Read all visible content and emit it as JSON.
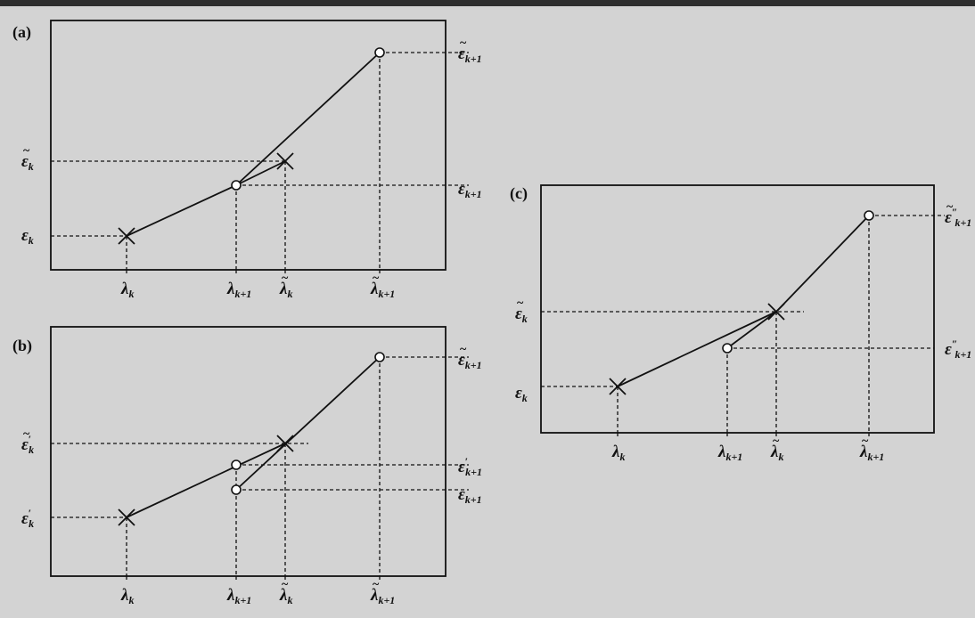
{
  "colors": {
    "background": "#d3d3d3",
    "ink": "#111111",
    "topbar": "#2e2e2e"
  },
  "panels": [
    {
      "id": "a",
      "label": "(a)",
      "y_labels": [
        {
          "base": "ε",
          "tilde": "~",
          "sub": "k",
          "sup": ""
        },
        {
          "base": "ε",
          "tilde": "",
          "sub": "k",
          "sup": ""
        },
        {
          "base": "ε",
          "tilde": "~",
          "sub": "k+1",
          "sup": ""
        },
        {
          "base": "ε",
          "tilde": "",
          "sub": "k+1",
          "sup": ""
        }
      ],
      "x_labels": [
        {
          "base": "λ",
          "tilde": "",
          "sub": "k"
        },
        {
          "base": "λ",
          "tilde": "",
          "sub": "k+1"
        },
        {
          "base": "λ",
          "tilde": "~",
          "sub": "k"
        },
        {
          "base": "λ",
          "tilde": "~",
          "sub": "k+1"
        }
      ]
    },
    {
      "id": "b",
      "label": "(b)",
      "y_labels": [
        {
          "base": "ε",
          "tilde": "~",
          "sub": "k",
          "sup": "′"
        },
        {
          "base": "ε",
          "tilde": "",
          "sub": "k",
          "sup": "′"
        },
        {
          "base": "ε",
          "tilde": "~",
          "sub": "k+1",
          "sup": ""
        },
        {
          "base": "ε",
          "tilde": "",
          "sub": "k+1",
          "sup": "′"
        },
        {
          "base": "ε",
          "tilde": "",
          "sub": "k+1",
          "sup": ""
        }
      ],
      "x_labels": [
        {
          "base": "λ",
          "tilde": "",
          "sub": "k"
        },
        {
          "base": "λ",
          "tilde": "",
          "sub": "k+1"
        },
        {
          "base": "λ",
          "tilde": "~",
          "sub": "k"
        },
        {
          "base": "λ",
          "tilde": "~",
          "sub": "k+1"
        }
      ]
    },
    {
      "id": "c",
      "label": "(c)",
      "y_labels": [
        {
          "base": "ε",
          "tilde": "~",
          "sub": "k",
          "sup": ""
        },
        {
          "base": "ε",
          "tilde": "",
          "sub": "k",
          "sup": ""
        },
        {
          "base": "ε",
          "tilde": "~",
          "sub": "k+1",
          "sup": "″"
        },
        {
          "base": "ε",
          "tilde": "",
          "sub": "k+1",
          "sup": "″"
        }
      ],
      "x_labels": [
        {
          "base": "λ",
          "tilde": "",
          "sub": "k"
        },
        {
          "base": "λ",
          "tilde": "",
          "sub": "k+1"
        },
        {
          "base": "λ",
          "tilde": "~",
          "sub": "k"
        },
        {
          "base": "λ",
          "tilde": "~",
          "sub": "k+1"
        }
      ]
    }
  ]
}
